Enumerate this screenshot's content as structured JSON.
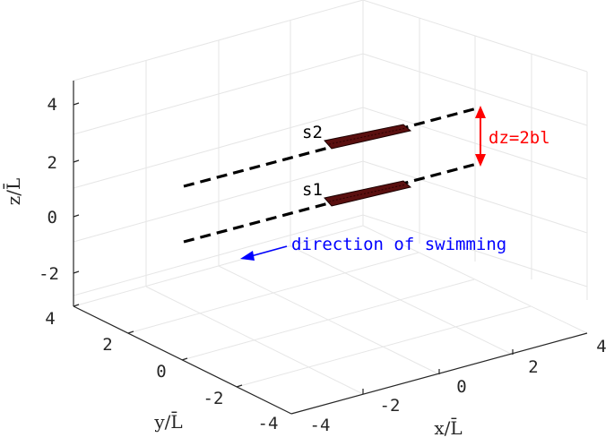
{
  "axes": {
    "x": {
      "label": "x/L̄",
      "ticks": [
        "-4",
        "-2",
        "0",
        "2",
        "4"
      ]
    },
    "y": {
      "label": "y/L̄",
      "ticks": [
        "4",
        "2",
        "0",
        "-2",
        "-4"
      ]
    },
    "z": {
      "label": "z/L̄",
      "ticks": [
        "4",
        "2",
        "0",
        "-2"
      ]
    }
  },
  "annotations": {
    "s1_label": "s1",
    "s2_label": "s2",
    "separation_label": "dz=2bl",
    "direction_label": "direction of swimming"
  },
  "colors": {
    "axis": "#262626",
    "grid": "#e6e6e6",
    "path": "#000000",
    "swimmer": "#5a0f0f",
    "separation": "#ff0000",
    "direction": "#0000ff"
  }
}
